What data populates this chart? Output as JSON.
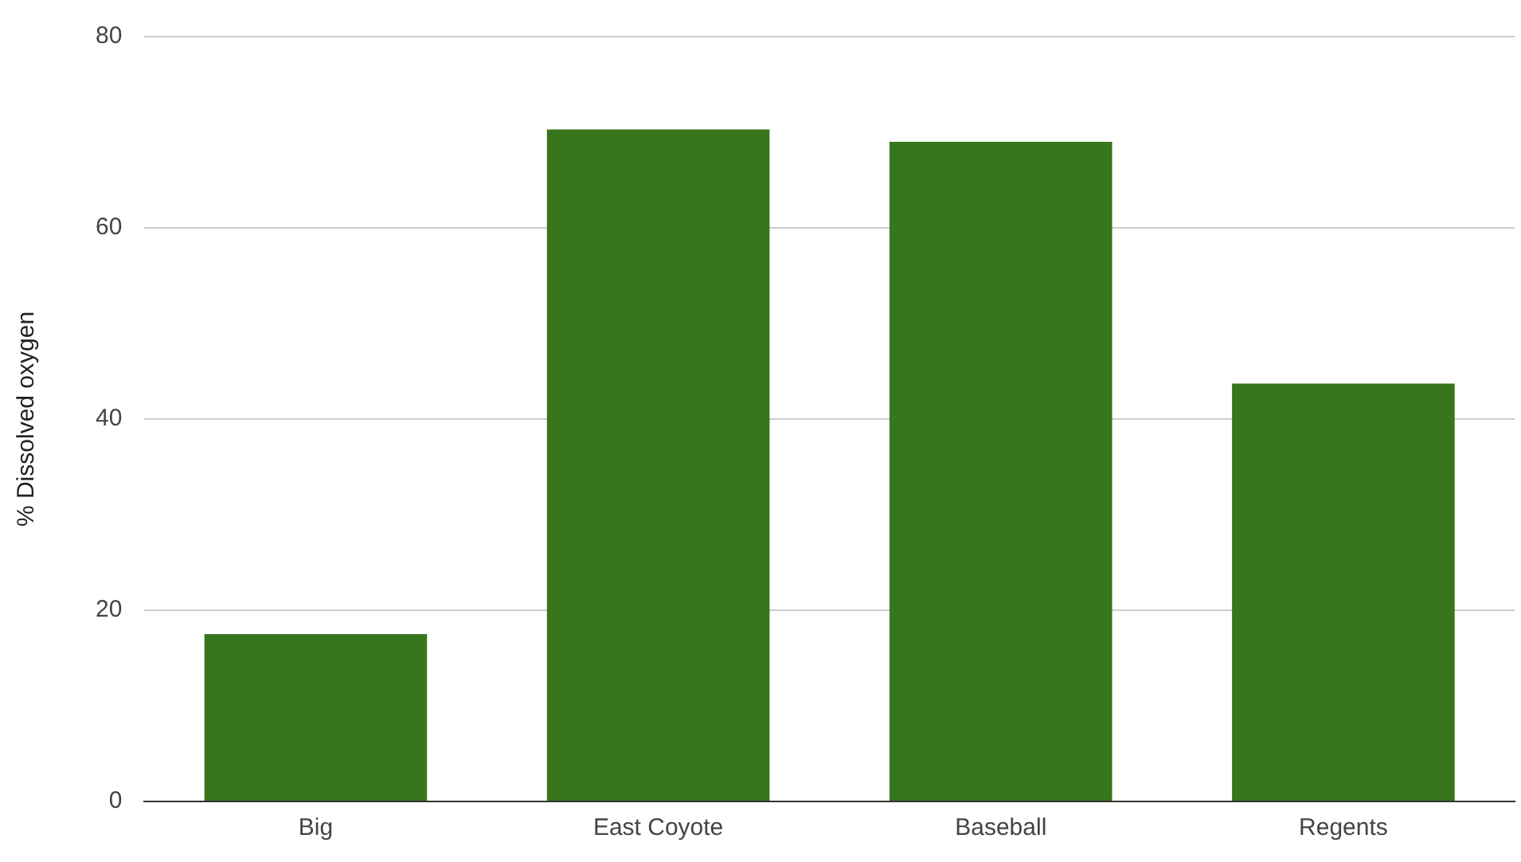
{
  "chart_data": {
    "type": "bar",
    "ylabel": "% Dissolved oxygen",
    "categories": [
      "Big",
      "East Coyote",
      "Baseball",
      "Regents"
    ],
    "values": [
      17.5,
      70.3,
      69,
      43.7
    ],
    "color": "#38761d",
    "ylim": [
      0,
      80
    ],
    "yticks": [
      0,
      20,
      40,
      60,
      80
    ],
    "grid": "y"
  }
}
